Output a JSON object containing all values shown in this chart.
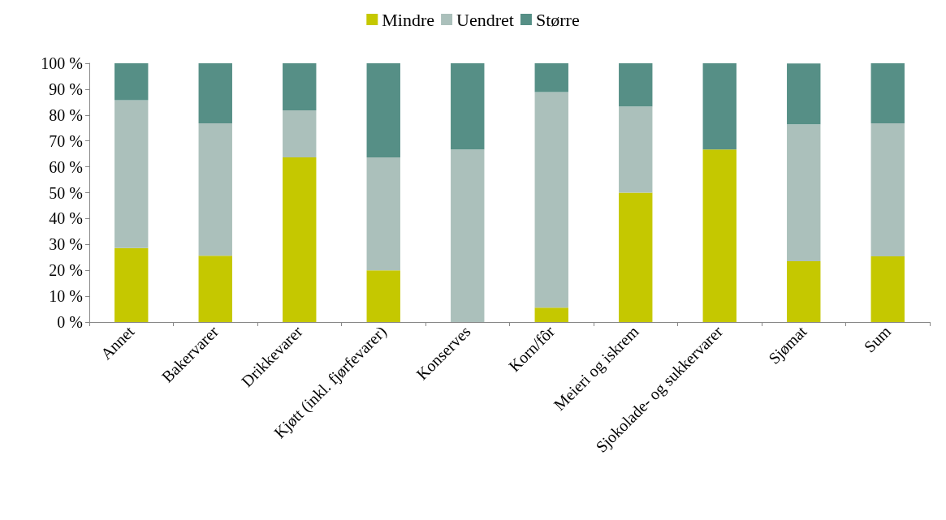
{
  "chart_data": {
    "type": "bar",
    "stacked": true,
    "legend": "top",
    "grid": false,
    "categories": [
      "Annet",
      "Bakervarer",
      "Drikkevarer",
      "Kjøtt (inkl. fjørfevarer)",
      "Konserves",
      "Korn/fôr",
      "Meieri og iskrem",
      "Sjokolade- og sukkervarer",
      "Sjømat",
      "Sum"
    ],
    "series": [
      {
        "name": "Mindre",
        "color": "#c5c800",
        "values": [
          28.6,
          25.6,
          63.6,
          20,
          0,
          5.6,
          50,
          66.7,
          23.5,
          25.4
        ]
      },
      {
        "name": "Uendret",
        "color": "#abc0bb",
        "values": [
          57.1,
          51.2,
          18.2,
          43.6,
          66.7,
          83.3,
          33.3,
          0,
          52.9,
          51.4
        ]
      },
      {
        "name": "Større",
        "color": "#568f86",
        "values": [
          14.3,
          23.2,
          18.2,
          36.4,
          33.3,
          11.1,
          16.7,
          33.3,
          23.5,
          23.2
        ]
      }
    ],
    "ylim": [
      0,
      100
    ],
    "yticks": [
      {
        "value": 0,
        "label": "0 %"
      },
      {
        "value": 10,
        "label": "10 %"
      },
      {
        "value": 20,
        "label": "20 %"
      },
      {
        "value": 30,
        "label": "30 %"
      },
      {
        "value": 40,
        "label": "40 %"
      },
      {
        "value": 50,
        "label": "50 %"
      },
      {
        "value": 60,
        "label": "60 %"
      },
      {
        "value": 70,
        "label": "70 %"
      },
      {
        "value": 80,
        "label": "80 %"
      },
      {
        "value": 90,
        "label": "90 %"
      },
      {
        "value": 100,
        "label": "100 %"
      }
    ]
  }
}
